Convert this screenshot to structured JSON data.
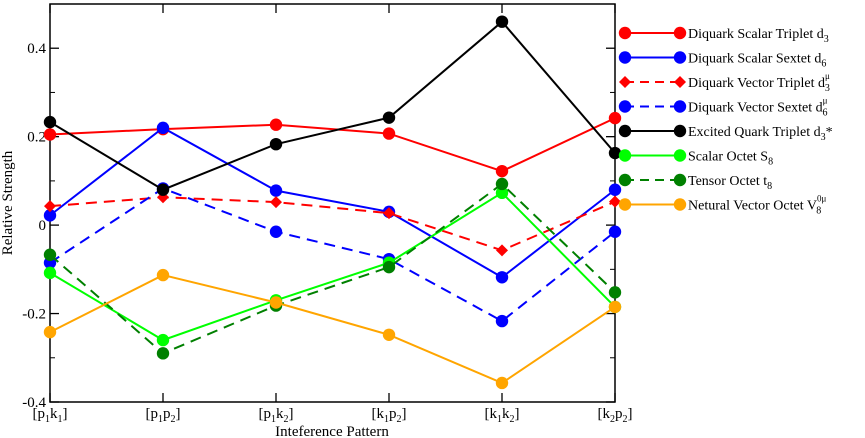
{
  "chart_data": {
    "type": "line",
    "xlabel": "Inteference Pattern",
    "ylabel": "Relative Strength",
    "ylim": [
      -0.4,
      0.5
    ],
    "grid": false,
    "legend_position": "right",
    "categories": [
      {
        "base": "[p",
        "s1": "1",
        "mid": "k",
        "s2": "1",
        "end": "]"
      },
      {
        "base": "[p",
        "s1": "1",
        "mid": "p",
        "s2": "2",
        "end": "]"
      },
      {
        "base": "[p",
        "s1": "1",
        "mid": "k",
        "s2": "2",
        "end": "]"
      },
      {
        "base": "[k",
        "s1": "1",
        "mid": "p",
        "s2": "2",
        "end": "]"
      },
      {
        "base": "[k",
        "s1": "1",
        "mid": "k",
        "s2": "2",
        "end": "]"
      },
      {
        "base": "[k",
        "s1": "2",
        "mid": "p",
        "s2": "2",
        "end": "]"
      }
    ],
    "yticks": [
      {
        "value": -0.4,
        "label": "-0.4"
      },
      {
        "value": -0.2,
        "label": "-0.2"
      },
      {
        "value": 0.0,
        "label": "0"
      },
      {
        "value": 0.2,
        "label": "0.2"
      },
      {
        "value": 0.4,
        "label": "0.4"
      }
    ],
    "series": [
      {
        "name": "Diquark Scalar Triplet d",
        "sub": "3",
        "sup": "",
        "tail": "",
        "color": "#ff0000",
        "dash": false,
        "marker": "circle",
        "values": [
          0.205,
          0.217,
          0.227,
          0.207,
          0.122,
          0.242
        ]
      },
      {
        "name": "Diquark Scalar Sextet d",
        "sub": "6",
        "sup": "",
        "tail": "",
        "color": "#0000ff",
        "dash": false,
        "marker": "circle",
        "values": [
          0.022,
          0.22,
          0.078,
          0.03,
          -0.118,
          0.08
        ]
      },
      {
        "name": "Diquark Vector Triplet d",
        "sub": "3",
        "sup": "μ",
        "tail": "",
        "color": "#ff0000",
        "dash": true,
        "marker": "diamond",
        "values": [
          0.043,
          0.063,
          0.052,
          0.027,
          -0.057,
          0.053
        ]
      },
      {
        "name": "Diquark Vector Sextet d",
        "sub": "6",
        "sup": "μ",
        "tail": "",
        "color": "#0000ff",
        "dash": true,
        "marker": "circle",
        "values": [
          -0.085,
          0.083,
          -0.015,
          -0.077,
          -0.217,
          -0.015
        ]
      },
      {
        "name": "Excited Quark Triplet d",
        "sub": "3",
        "sup": "",
        "tail": "*",
        "color": "#000000",
        "dash": false,
        "marker": "circle",
        "values": [
          0.233,
          0.08,
          0.183,
          0.243,
          0.46,
          0.163
        ]
      },
      {
        "name": "Scalar Octet S",
        "sub": "8",
        "sup": "",
        "tail": "",
        "color": "#00ff00",
        "dash": false,
        "marker": "circle",
        "values": [
          -0.108,
          -0.26,
          -0.17,
          -0.085,
          0.073,
          -0.185
        ]
      },
      {
        "name": "Tensor Octet t",
        "sub": "8",
        "sup": "",
        "tail": "",
        "color": "#008000",
        "dash": true,
        "marker": "circle",
        "values": [
          -0.067,
          -0.29,
          -0.182,
          -0.095,
          0.093,
          -0.152
        ]
      },
      {
        "name": "Netural Vector Octet V",
        "sub": "8",
        "sup": "0μ",
        "tail": "",
        "color": "#ffa500",
        "dash": false,
        "marker": "circle",
        "values": [
          -0.242,
          -0.113,
          -0.175,
          -0.248,
          -0.357,
          -0.185
        ]
      }
    ]
  }
}
